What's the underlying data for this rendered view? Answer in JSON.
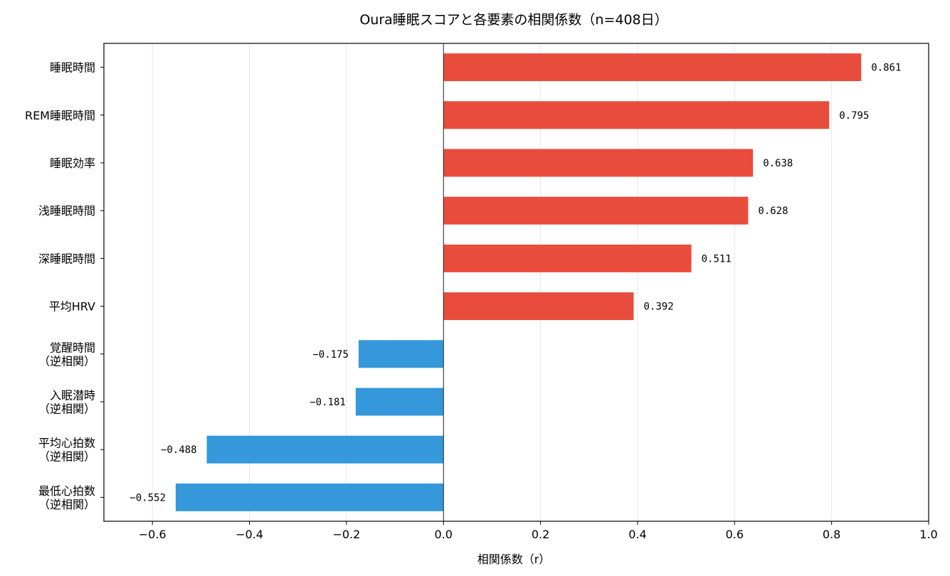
{
  "chart_data": {
    "type": "bar",
    "orientation": "horizontal",
    "title": "Oura睡眠スコアと各要素の相関係数（n=408日）",
    "xlabel": "相関係数（r）",
    "ylabel": "",
    "xlim": [
      -0.7,
      1.0
    ],
    "xticks": [
      -0.6,
      -0.4,
      -0.2,
      0.0,
      0.2,
      0.4,
      0.6,
      0.8,
      1.0
    ],
    "xtick_labels": [
      "−0.6",
      "−0.4",
      "−0.2",
      "0.0",
      "0.2",
      "0.4",
      "0.6",
      "0.8",
      "1.0"
    ],
    "grid": "x",
    "categories": [
      [
        "睡眠時間"
      ],
      [
        "REM睡眠時間"
      ],
      [
        "睡眠効率"
      ],
      [
        "浅睡眠時間"
      ],
      [
        "深睡眠時間"
      ],
      [
        "平均HRV"
      ],
      [
        "覚醒時間",
        "（逆相関）"
      ],
      [
        "入眠潜時",
        "（逆相関）"
      ],
      [
        "平均心拍数",
        "（逆相関）"
      ],
      [
        "最低心拍数",
        "（逆相関）"
      ]
    ],
    "values": [
      0.861,
      0.795,
      0.638,
      0.628,
      0.511,
      0.392,
      -0.175,
      -0.181,
      -0.488,
      -0.552
    ],
    "value_labels": [
      "0.861",
      "0.795",
      "0.638",
      "0.628",
      "0.511",
      "0.392",
      "−0.175",
      "−0.181",
      "−0.488",
      "−0.552"
    ],
    "colors": {
      "positive": "#e84c3d",
      "negative": "#3498db"
    }
  }
}
